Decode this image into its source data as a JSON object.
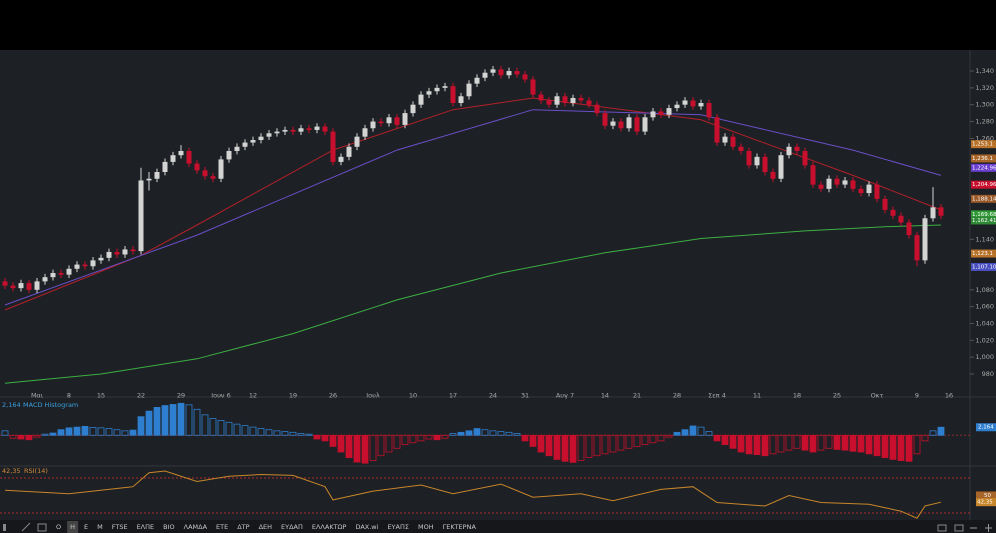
{
  "chart_data": {
    "type": "candlestick",
    "xlim": [
      -0.625,
      120.625
    ],
    "xticks": [
      {
        "value": 4,
        "label": "Μαι"
      },
      {
        "value": 8,
        "label": "8"
      },
      {
        "value": 12,
        "label": "15"
      },
      {
        "value": 17,
        "label": "22"
      },
      {
        "value": 22,
        "label": "29"
      },
      {
        "value": 27,
        "label": "Ιουν 6"
      },
      {
        "value": 31,
        "label": "12"
      },
      {
        "value": 36,
        "label": "19"
      },
      {
        "value": 41,
        "label": "26"
      },
      {
        "value": 46,
        "label": "Ιουλ"
      },
      {
        "value": 51,
        "label": "10"
      },
      {
        "value": 56,
        "label": "17"
      },
      {
        "value": 61,
        "label": "24"
      },
      {
        "value": 65,
        "label": "31"
      },
      {
        "value": 70,
        "label": "Αυγ 7"
      },
      {
        "value": 75,
        "label": "14"
      },
      {
        "value": 79,
        "label": "21"
      },
      {
        "value": 84,
        "label": "28"
      },
      {
        "value": 89,
        "label": "Σεπ 4"
      },
      {
        "value": 94,
        "label": "11"
      },
      {
        "value": 99,
        "label": "18"
      },
      {
        "value": 104,
        "label": "25"
      },
      {
        "value": 109,
        "label": "Οκτ"
      },
      {
        "value": 114,
        "label": "9"
      },
      {
        "value": 118,
        "label": "16"
      }
    ],
    "ylim": [
      955,
      1365
    ],
    "yticks": [
      {
        "value": 980,
        "label": "980"
      },
      {
        "value": 1000,
        "label": "1,000"
      },
      {
        "value": 1020,
        "label": "1,020"
      },
      {
        "value": 1040,
        "label": "1,040"
      },
      {
        "value": 1060,
        "label": "1,060"
      },
      {
        "value": 1080,
        "label": "1,080"
      },
      {
        "value": 1140,
        "label": "1,140"
      },
      {
        "value": 1260,
        "label": "1,260"
      },
      {
        "value": 1280,
        "label": "1,280"
      },
      {
        "value": 1300,
        "label": "1,300"
      },
      {
        "value": 1320,
        "label": "1,320"
      },
      {
        "value": 1340,
        "label": "1,340"
      }
    ],
    "up_color": "#d4d4d4",
    "down_color": "#c8102e",
    "candles": [
      [
        1090,
        1094,
        1081,
        1085
      ],
      [
        1085,
        1089,
        1078,
        1082
      ],
      [
        1082,
        1092,
        1078,
        1088
      ],
      [
        1088,
        1092,
        1076,
        1080
      ],
      [
        1080,
        1094,
        1076,
        1090
      ],
      [
        1090,
        1099,
        1086,
        1095
      ],
      [
        1095,
        1104,
        1091,
        1100
      ],
      [
        1100,
        1104,
        1094,
        1098
      ],
      [
        1098,
        1109,
        1094,
        1105
      ],
      [
        1105,
        1114,
        1101,
        1110
      ],
      [
        1110,
        1114,
        1104,
        1108
      ],
      [
        1108,
        1119,
        1104,
        1115
      ],
      [
        1115,
        1122,
        1111,
        1118
      ],
      [
        1118,
        1129,
        1114,
        1125
      ],
      [
        1125,
        1129,
        1118,
        1122
      ],
      [
        1122,
        1132,
        1118,
        1128
      ],
      [
        1128,
        1132,
        1122,
        1126
      ],
      [
        1126,
        1225,
        1122,
        1210
      ],
      [
        1210,
        1220,
        1198,
        1212
      ],
      [
        1212,
        1224,
        1208,
        1220
      ],
      [
        1220,
        1236,
        1216,
        1232
      ],
      [
        1232,
        1244,
        1228,
        1240
      ],
      [
        1240,
        1252,
        1236,
        1245
      ],
      [
        1245,
        1249,
        1226,
        1230
      ],
      [
        1230,
        1234,
        1218,
        1222
      ],
      [
        1222,
        1226,
        1211,
        1215
      ],
      [
        1215,
        1219,
        1208,
        1212
      ],
      [
        1212,
        1239,
        1208,
        1235
      ],
      [
        1235,
        1249,
        1231,
        1245
      ],
      [
        1245,
        1254,
        1241,
        1250
      ],
      [
        1250,
        1259,
        1246,
        1255
      ],
      [
        1255,
        1262,
        1251,
        1258
      ],
      [
        1258,
        1266,
        1254,
        1262
      ],
      [
        1262,
        1270,
        1258,
        1266
      ],
      [
        1266,
        1272,
        1262,
        1268
      ],
      [
        1268,
        1274,
        1264,
        1270
      ],
      [
        1270,
        1274,
        1264,
        1268
      ],
      [
        1268,
        1276,
        1264,
        1272
      ],
      [
        1272,
        1276,
        1266,
        1270
      ],
      [
        1270,
        1278,
        1266,
        1274
      ],
      [
        1274,
        1278,
        1264,
        1268
      ],
      [
        1268,
        1272,
        1228,
        1232
      ],
      [
        1232,
        1242,
        1228,
        1238
      ],
      [
        1238,
        1254,
        1234,
        1250
      ],
      [
        1250,
        1266,
        1246,
        1262
      ],
      [
        1262,
        1276,
        1258,
        1272
      ],
      [
        1272,
        1284,
        1268,
        1280
      ],
      [
        1280,
        1284,
        1274,
        1278
      ],
      [
        1278,
        1289,
        1274,
        1285
      ],
      [
        1285,
        1289,
        1272,
        1276
      ],
      [
        1276,
        1294,
        1272,
        1290
      ],
      [
        1290,
        1304,
        1286,
        1300
      ],
      [
        1300,
        1316,
        1296,
        1312
      ],
      [
        1312,
        1320,
        1308,
        1316
      ],
      [
        1316,
        1324,
        1312,
        1320
      ],
      [
        1320,
        1326,
        1316,
        1322
      ],
      [
        1322,
        1326,
        1298,
        1302
      ],
      [
        1302,
        1314,
        1298,
        1310
      ],
      [
        1310,
        1329,
        1306,
        1325
      ],
      [
        1325,
        1336,
        1321,
        1332
      ],
      [
        1332,
        1342,
        1328,
        1338
      ],
      [
        1338,
        1346,
        1334,
        1342
      ],
      [
        1342,
        1346,
        1331,
        1335
      ],
      [
        1335,
        1344,
        1331,
        1340
      ],
      [
        1340,
        1344,
        1332,
        1336
      ],
      [
        1336,
        1340,
        1326,
        1330
      ],
      [
        1330,
        1334,
        1308,
        1312
      ],
      [
        1312,
        1316,
        1301,
        1305
      ],
      [
        1305,
        1309,
        1296,
        1300
      ],
      [
        1300,
        1314,
        1296,
        1310
      ],
      [
        1310,
        1314,
        1298,
        1302
      ],
      [
        1302,
        1312,
        1298,
        1308
      ],
      [
        1308,
        1312,
        1301,
        1305
      ],
      [
        1305,
        1309,
        1296,
        1300
      ],
      [
        1300,
        1304,
        1286,
        1290
      ],
      [
        1290,
        1294,
        1271,
        1275
      ],
      [
        1275,
        1284,
        1271,
        1280
      ],
      [
        1280,
        1284,
        1268,
        1272
      ],
      [
        1272,
        1289,
        1268,
        1285
      ],
      [
        1285,
        1289,
        1264,
        1268
      ],
      [
        1268,
        1289,
        1264,
        1285
      ],
      [
        1285,
        1296,
        1281,
        1292
      ],
      [
        1292,
        1296,
        1284,
        1288
      ],
      [
        1288,
        1300,
        1284,
        1296
      ],
      [
        1296,
        1304,
        1292,
        1300
      ],
      [
        1300,
        1309,
        1296,
        1305
      ],
      [
        1305,
        1309,
        1294,
        1298
      ],
      [
        1298,
        1306,
        1294,
        1302
      ],
      [
        1302,
        1306,
        1281,
        1285
      ],
      [
        1285,
        1289,
        1251,
        1255
      ],
      [
        1255,
        1266,
        1251,
        1262
      ],
      [
        1262,
        1266,
        1246,
        1250
      ],
      [
        1250,
        1254,
        1241,
        1245
      ],
      [
        1245,
        1249,
        1224,
        1228
      ],
      [
        1228,
        1242,
        1224,
        1238
      ],
      [
        1238,
        1242,
        1216,
        1220
      ],
      [
        1220,
        1224,
        1208,
        1212
      ],
      [
        1212,
        1244,
        1208,
        1240
      ],
      [
        1240,
        1254,
        1236,
        1250
      ],
      [
        1250,
        1254,
        1241,
        1245
      ],
      [
        1245,
        1249,
        1224,
        1228
      ],
      [
        1228,
        1232,
        1201,
        1205
      ],
      [
        1205,
        1209,
        1196,
        1200
      ],
      [
        1200,
        1216,
        1196,
        1212
      ],
      [
        1212,
        1216,
        1201,
        1205
      ],
      [
        1205,
        1214,
        1201,
        1210
      ],
      [
        1210,
        1214,
        1196,
        1200
      ],
      [
        1200,
        1204,
        1191,
        1195
      ],
      [
        1195,
        1209,
        1191,
        1205
      ],
      [
        1205,
        1209,
        1184,
        1188
      ],
      [
        1188,
        1192,
        1171,
        1175
      ],
      [
        1175,
        1179,
        1164,
        1168
      ],
      [
        1168,
        1172,
        1156,
        1160
      ],
      [
        1160,
        1164,
        1141,
        1145
      ],
      [
        1145,
        1149,
        1108,
        1115
      ],
      [
        1115,
        1169,
        1111,
        1165
      ],
      [
        1165,
        1202,
        1161,
        1178
      ],
      [
        1178,
        1182,
        1164,
        1168
      ]
    ],
    "lines": [
      {
        "color": "#3cb043",
        "x": [
          0,
          12,
          24,
          36,
          49,
          62,
          75,
          87,
          100,
          110,
          117
        ],
        "values": [
          969,
          980,
          998,
          1028,
          1068,
          1100,
          1124,
          1141,
          1150,
          1155,
          1157
        ]
      },
      {
        "color": "#b3202a",
        "x": [
          0,
          17,
          24,
          41,
          56,
          66,
          87,
          106,
          117
        ],
        "values": [
          1056,
          1121,
          1157,
          1246,
          1294,
          1308,
          1282,
          1216,
          1175
        ]
      },
      {
        "color": "#6a4fc8",
        "x": [
          0,
          24,
          49,
          66,
          87,
          106,
          117
        ],
        "values": [
          1062,
          1145,
          1246,
          1294,
          1288,
          1246,
          1216
        ]
      }
    ],
    "price_tags": [
      {
        "value": 1253.1,
        "label": "1,253.1",
        "color": "#b8732a"
      },
      {
        "value": 1236.1,
        "label": "1,236.1",
        "color": "#a8652a"
      },
      {
        "value": 1224.96,
        "label": "1,224.96",
        "color": "#6a3fd0"
      },
      {
        "value": 1204.96,
        "label": "1,204.96",
        "color": "#c8102e"
      },
      {
        "value": 1188.14,
        "label": "1,188.14",
        "color": "#9a5a2a"
      },
      {
        "value": 1169.68,
        "label": "1,169.68",
        "color": "#2f9a35"
      },
      {
        "value": 1162.41,
        "label": "1,162.41",
        "color": "#2f8a35"
      },
      {
        "value": 1123.1,
        "label": "1,123.1",
        "color": "#b8732a"
      },
      {
        "value": 1107.1,
        "label": "1,107.10",
        "color": "#4a4fc0"
      }
    ],
    "macd": {
      "title": "MACD Histogram",
      "last_label": "2,164",
      "ylim": [
        -8,
        9.5
      ],
      "up_color": "#2f7fd0",
      "down_color": "#c8102e",
      "values": [
        1.2,
        -0.8,
        -1,
        -1.2,
        -0.5,
        0.3,
        0.6,
        1.5,
        2,
        2.2,
        2.4,
        2.1,
        2,
        1.8,
        1.5,
        1.2,
        1.4,
        5,
        6.5,
        7.5,
        8,
        8.3,
        8.6,
        8.2,
        7,
        5.5,
        4.5,
        4,
        3.5,
        3,
        2.6,
        2.2,
        1.8,
        1.5,
        1.2,
        1,
        0.8,
        0.5,
        0.3,
        -1,
        -1.5,
        -3,
        -4.5,
        -6,
        -7.2,
        -7.5,
        -6.8,
        -5.5,
        -4.5,
        -3.5,
        -2.5,
        -2,
        -1.5,
        -1,
        -1.2,
        -0.8,
        0.5,
        0.8,
        1.2,
        1.8,
        1.5,
        1.2,
        1,
        0.8,
        0.5,
        -1.5,
        -3,
        -4.5,
        -5.5,
        -6.5,
        -7,
        -7.3,
        -6.8,
        -6,
        -5.5,
        -5,
        -4.5,
        -4,
        -3.5,
        -3,
        -2.5,
        -2,
        -1.5,
        -0.5,
        0.8,
        1.5,
        2.5,
        2.2,
        1,
        -1.5,
        -2.5,
        -3.5,
        -4.5,
        -5,
        -5.2,
        -5.5,
        -5,
        -4.5,
        -4,
        -3.5,
        -4,
        -4.5,
        -4,
        -3.5,
        -3.8,
        -4,
        -4.3,
        -4.5,
        -5,
        -5.5,
        -6,
        -6.5,
        -6.8,
        -7,
        -5,
        -1.5,
        1.2,
        2.164
      ]
    },
    "rsi": {
      "title": "RSI(14)",
      "last_label": "42,35",
      "ylim": [
        22,
        81.4
      ],
      "color": "#c8862a",
      "levels": [
        70,
        30
      ],
      "yticks": [
        50
      ],
      "x": [
        0,
        8,
        16,
        18,
        20,
        24,
        28,
        32,
        36,
        40,
        41,
        46,
        52,
        56,
        62,
        66,
        72,
        76,
        82,
        86,
        89,
        95,
        98,
        102,
        108,
        112,
        114,
        115,
        117
      ],
      "values": [
        56,
        52,
        60,
        76,
        78,
        66,
        72,
        74,
        73,
        60,
        45,
        55,
        62,
        52,
        63,
        48,
        52,
        44,
        57,
        60,
        42,
        38,
        50,
        42,
        40,
        32,
        24,
        38,
        42.35
      ]
    }
  },
  "toolbar": {
    "items": [
      "Ο",
      "Η",
      "Ε",
      "Μ",
      "FTSE",
      "ΕΛΠΕ",
      "ΒΙΟ",
      "ΛΑΜΔΑ",
      "ΕΤΕ",
      "ΔΤΡ",
      "ΔΕΗ",
      "ΕΥΔΑΠ",
      "ΕΛΛΑΚΤΩΡ",
      "DAX.wi",
      "ΕΥΑΠΣ",
      "ΜΟΗ",
      "ΓΕΚΤΕΡΝΑ"
    ]
  }
}
